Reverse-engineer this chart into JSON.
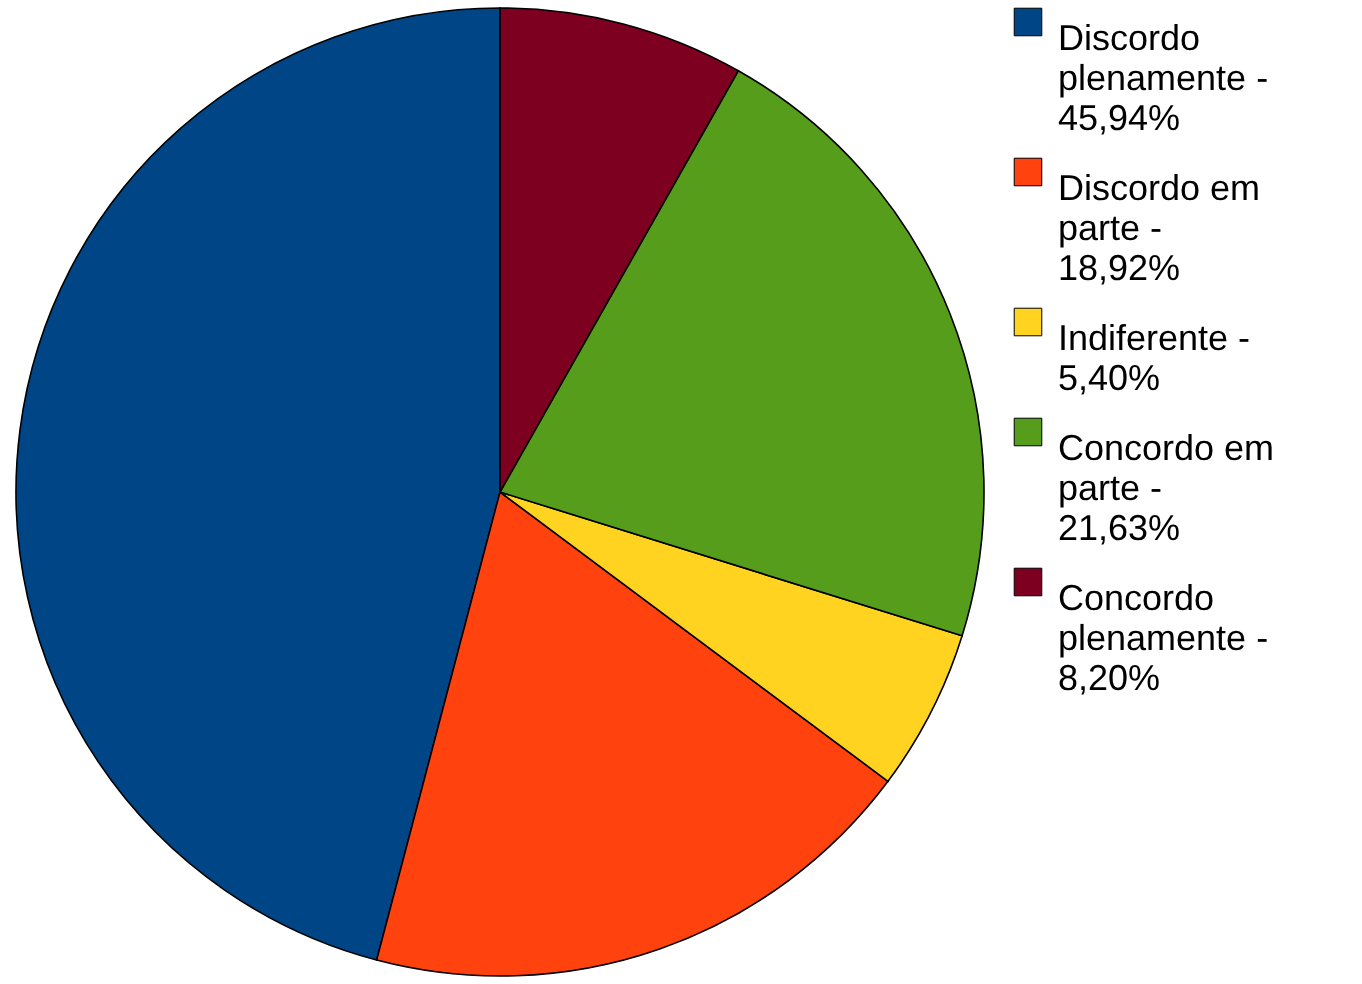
{
  "chart_data": {
    "type": "pie",
    "categories": [
      "Discordo plenamente - 45,94%",
      "Discordo em parte - 18,92%",
      "Indiferente - 5,40%",
      "Concordo em parte - 21,63%",
      "Concordo plenamente - 8,20%"
    ],
    "values": [
      45.94,
      18.92,
      5.4,
      21.63,
      8.2
    ],
    "colors": [
      "#004586",
      "#ff420e",
      "#ffd320",
      "#579d1c",
      "#7e0021"
    ],
    "legend": "right"
  }
}
